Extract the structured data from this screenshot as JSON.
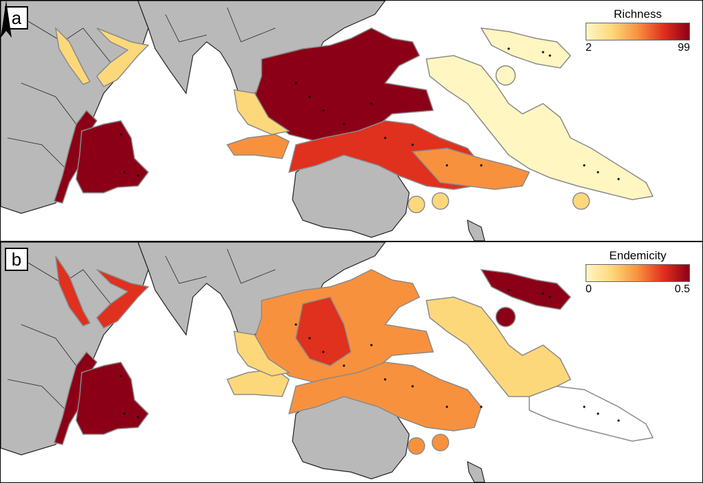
{
  "panels": [
    {
      "label": "a",
      "legend": {
        "title": "Richness",
        "min": "2",
        "max": "99",
        "colors": [
          "#fff6c2",
          "#fdd87b",
          "#f8913e",
          "#e0301e",
          "#8b0016"
        ]
      },
      "north_arrow": true
    },
    {
      "label": "b",
      "legend": {
        "title": "Endemicity",
        "min": "0",
        "max": "0.5",
        "colors": [
          "#fff6c2",
          "#fdd87b",
          "#f8913e",
          "#e0301e",
          "#8b0016"
        ]
      },
      "north_arrow": false
    }
  ],
  "colors": {
    "land": "#b9b9b9",
    "land_edge": "#222222",
    "ocean": "#ffffff",
    "zone_edge": "#8a8a8a"
  }
}
